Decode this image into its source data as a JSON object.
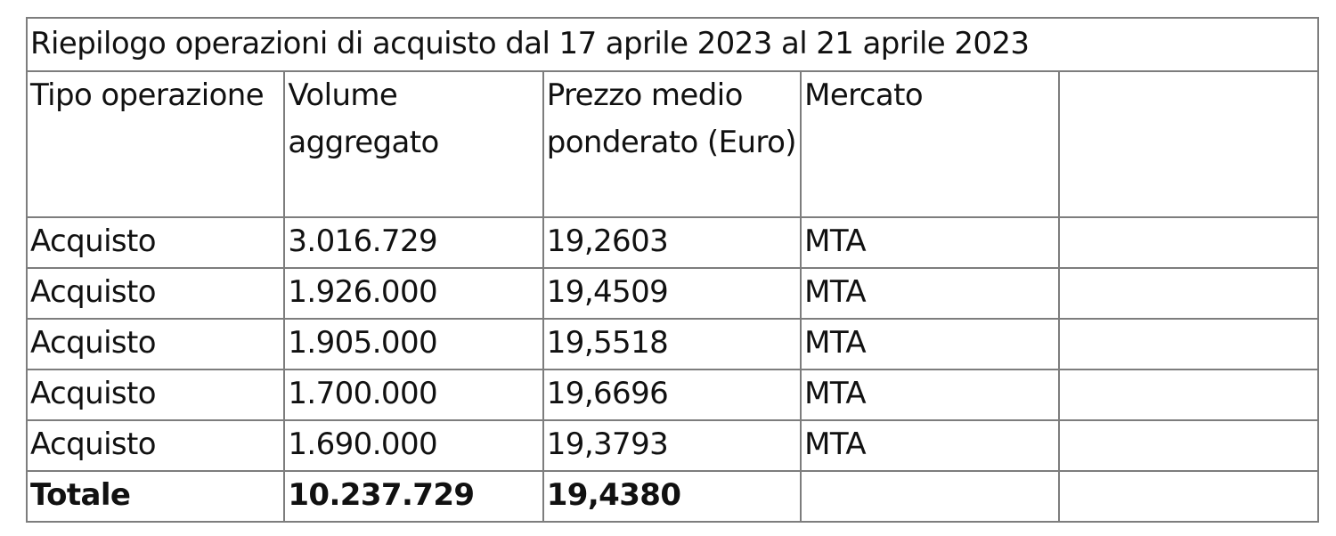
{
  "table": {
    "title": "Riepilogo operazioni di acquisto dal 17 aprile 2023 al 21 aprile 2023",
    "headers": [
      "Tipo operazione",
      "Volume aggregato",
      "Prezzo medio ponderato (Euro)",
      "Mercato",
      ""
    ],
    "rows": [
      [
        "Acquisto",
        "3.016.729",
        "19,2603",
        "MTA",
        ""
      ],
      [
        "Acquisto",
        "1.926.000",
        "19,4509",
        "MTA",
        ""
      ],
      [
        "Acquisto",
        "1.905.000",
        "19,5518",
        "MTA",
        ""
      ],
      [
        "Acquisto",
        "1.700.000",
        "19,6696",
        "MTA",
        ""
      ],
      [
        "Acquisto",
        "1.690.000",
        "19,3793",
        "MTA",
        ""
      ]
    ],
    "total": [
      "Totale",
      "10.237.729",
      "19,4380",
      "",
      ""
    ]
  }
}
